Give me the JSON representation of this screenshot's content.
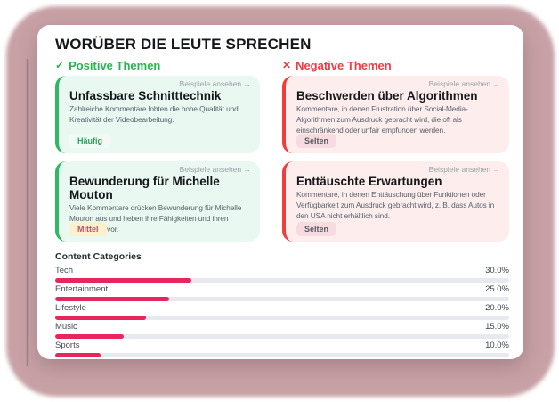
{
  "page": {
    "title": "WORÜBER DIE LEUTE SPRECHEN"
  },
  "sections": {
    "positive": {
      "icon": "✓",
      "label": "Positive Themen",
      "color": "#2ab352"
    },
    "negative": {
      "icon": "✕",
      "label": "Negative Themen",
      "color": "#ee3d46"
    }
  },
  "examples_link_label": "Beispiele ansehen →",
  "themes": {
    "positive": [
      {
        "title": "Unfassbare Schnitttechnik",
        "description": "Zahlreiche Kommentare lobten die hohe Qualität und Kreativität der Videobearbeitung.",
        "badge": "Häufig",
        "badge_variant": "green"
      },
      {
        "title": "Bewunderung für Michelle Mouton",
        "description": "Viele Kommentare drücken Bewunderung für Michelle Mouton aus und heben ihre Fähigkeiten und ihren Einfluss hervor.",
        "badge": "Mittel",
        "badge_variant": "amber"
      }
    ],
    "negative": [
      {
        "title": "Beschwerden über Algorithmen",
        "description": "Kommentare, in denen Frustration über Social-Media-Algorithmen zum Ausdruck gebracht wird, die oft als einschränkend oder unfair empfunden werden.",
        "badge": "Selten",
        "badge_variant": "pink"
      },
      {
        "title": "Enttäuschte Erwartungen",
        "description": "Kommentare, in denen Enttäuschung über Funktionen oder Verfügbarkeit zum Ausdruck gebracht wird, z. B. dass Autos in den USA nicht erhältlich sind.",
        "badge": "Selten",
        "badge_variant": "pink"
      }
    ]
  },
  "chart_data": {
    "type": "bar",
    "orientation": "horizontal",
    "title": "Content Categories",
    "categories": [
      "Tech",
      "Entertainment",
      "Lifestyle",
      "Music",
      "Sports"
    ],
    "values": [
      30,
      25,
      20,
      15,
      10
    ],
    "value_labels": [
      "30.0%",
      "25.0%",
      "20.0%",
      "15.0%",
      "10.0%"
    ],
    "xlim": [
      0,
      100
    ],
    "bar_color": "#e7265d",
    "track_color": "#e8e9ee",
    "grid": false,
    "legend": false
  },
  "colors": {
    "backdrop": "#c7a1a6",
    "positive_accent": "#2eb765",
    "negative_accent": "#f03e3e",
    "bar_fill": "#e7265d"
  }
}
